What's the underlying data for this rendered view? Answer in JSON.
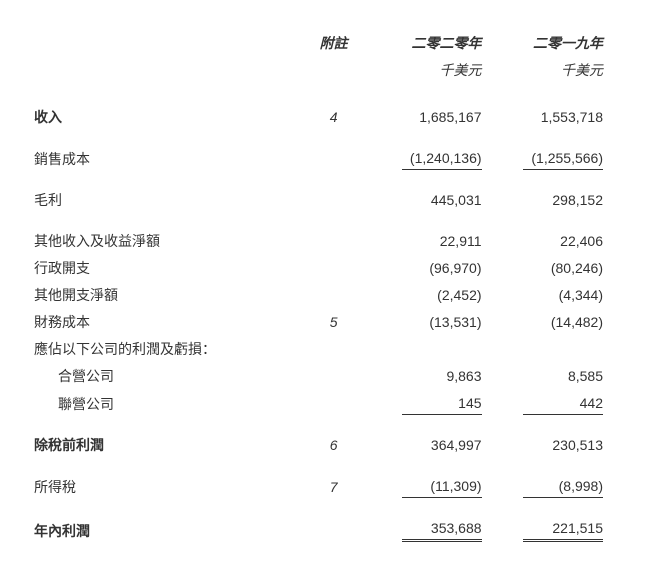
{
  "header": {
    "note_label": "附註",
    "col1_year": "二零二零年",
    "col2_year": "二零一九年",
    "col1_unit": "千美元",
    "col2_unit": "千美元"
  },
  "rows": {
    "revenue": {
      "label": "收入",
      "note": "4",
      "v1": "1,685,167",
      "v2": "1,553,718"
    },
    "cost_of_sales": {
      "label": "銷售成本",
      "note": "",
      "v1": "(1,240,136)",
      "v2": "(1,255,566)"
    },
    "gross_profit": {
      "label": "毛利",
      "note": "",
      "v1": "445,031",
      "v2": "298,152"
    },
    "other_income": {
      "label": "其他收入及收益淨額",
      "note": "",
      "v1": "22,911",
      "v2": "22,406"
    },
    "admin_exp": {
      "label": "行政開支",
      "note": "",
      "v1": "(96,970)",
      "v2": "(80,246)"
    },
    "other_exp": {
      "label": "其他開支淨額",
      "note": "",
      "v1": "(2,452)",
      "v2": "(4,344)"
    },
    "finance_cost": {
      "label": "財務成本",
      "note": "5",
      "v1": "(13,531)",
      "v2": "(14,482)"
    },
    "share_header": {
      "label": "應佔以下公司的利潤及虧損："
    },
    "jv": {
      "label": "合營公司",
      "note": "",
      "v1": "9,863",
      "v2": "8,585"
    },
    "assoc": {
      "label": "聯營公司",
      "note": "",
      "v1": "145",
      "v2": "442"
    },
    "pbt": {
      "label": "除稅前利潤",
      "note": "6",
      "v1": "364,997",
      "v2": "230,513"
    },
    "tax": {
      "label": "所得稅",
      "note": "7",
      "v1": "(11,309)",
      "v2": "(8,998)"
    },
    "profit_year": {
      "label": "年內利潤",
      "note": "",
      "v1": "353,688",
      "v2": "221,515"
    }
  },
  "style": {
    "text_color": "#333333",
    "background": "#ffffff",
    "font_size_pt": 11,
    "rule_color": "#333333"
  }
}
